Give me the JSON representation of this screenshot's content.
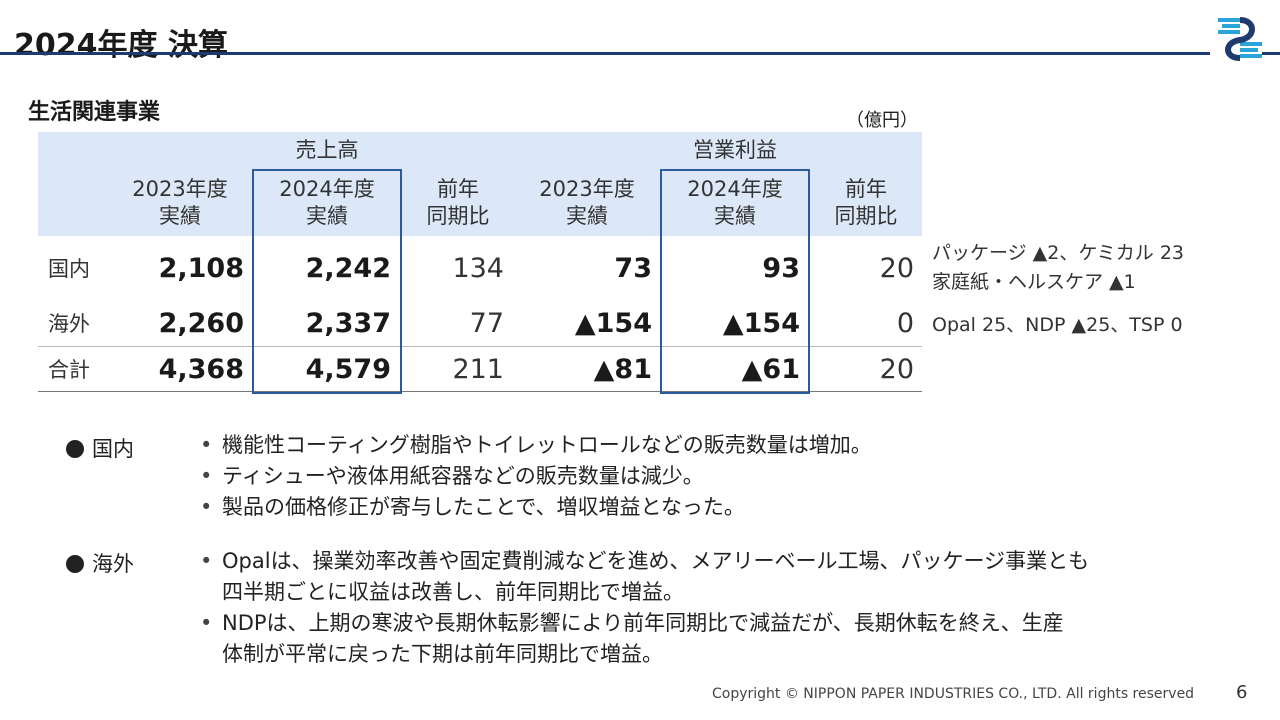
{
  "page": {
    "title": "2024年度 決算",
    "section": "生活関連事業",
    "unit": "（億円）"
  },
  "table": {
    "group_headers": {
      "sales": "売上高",
      "operating_profit": "営業利益"
    },
    "columns": [
      {
        "line1": "2023年度",
        "line2": "実績"
      },
      {
        "line1": "2024年度",
        "line2": "実績"
      },
      {
        "line1": "前年",
        "line2": "同期比"
      },
      {
        "line1": "2023年度",
        "line2": "実績"
      },
      {
        "line1": "2024年度",
        "line2": "実績"
      },
      {
        "line1": "前年",
        "line2": "同期比"
      }
    ],
    "rows": [
      {
        "label": "国内",
        "values": [
          "2,108",
          "2,242",
          "134",
          "73",
          "93",
          "20"
        ]
      },
      {
        "label": "海外",
        "values": [
          "2,260",
          "2,337",
          "77",
          "▲154",
          "▲154",
          "0"
        ]
      },
      {
        "label": "合計",
        "values": [
          "4,368",
          "4,579",
          "211",
          "▲81",
          "▲61",
          "20"
        ]
      }
    ]
  },
  "side_notes": {
    "domestic_line1": "パッケージ ▲2、ケミカル 23",
    "domestic_line2": "家庭紙・ヘルスケア ▲1",
    "overseas": "Opal 25、NDP ▲25、TSP 0"
  },
  "bullets": {
    "domestic": {
      "heading": "国内",
      "items": [
        "機能性コーティング樹脂やトイレットロールなどの販売数量は増加。",
        "ティシューや液体用紙容器などの販売数量は減少。",
        "製品の価格修正が寄与したことで、増収増益となった。"
      ]
    },
    "overseas": {
      "heading": "海外",
      "items": [
        {
          "l1": "Opalは、操業効率改善や固定費削減などを進め、メアリーベール工場、パッケージ事業とも",
          "l2": "四半期ごとに収益は改善し、前年同期比で増益。"
        },
        {
          "l1": "NDPは、上期の寒波や長期休転影響により前年同期比で減益だが、長期休転を終え、生産",
          "l2": "体制が平常に戻った下期は前年同期比で増益。"
        }
      ]
    }
  },
  "footer": {
    "copyright": "Copyright © NIPPON PAPER INDUSTRIES CO., LTD. All rights reserved",
    "page_number": "6"
  },
  "colors": {
    "accent": "#1f3a6e",
    "header_band": "#dce8f7",
    "highlight_border": "#2b5a9e"
  },
  "icons": {
    "logo": "nippon-paper-logo"
  }
}
